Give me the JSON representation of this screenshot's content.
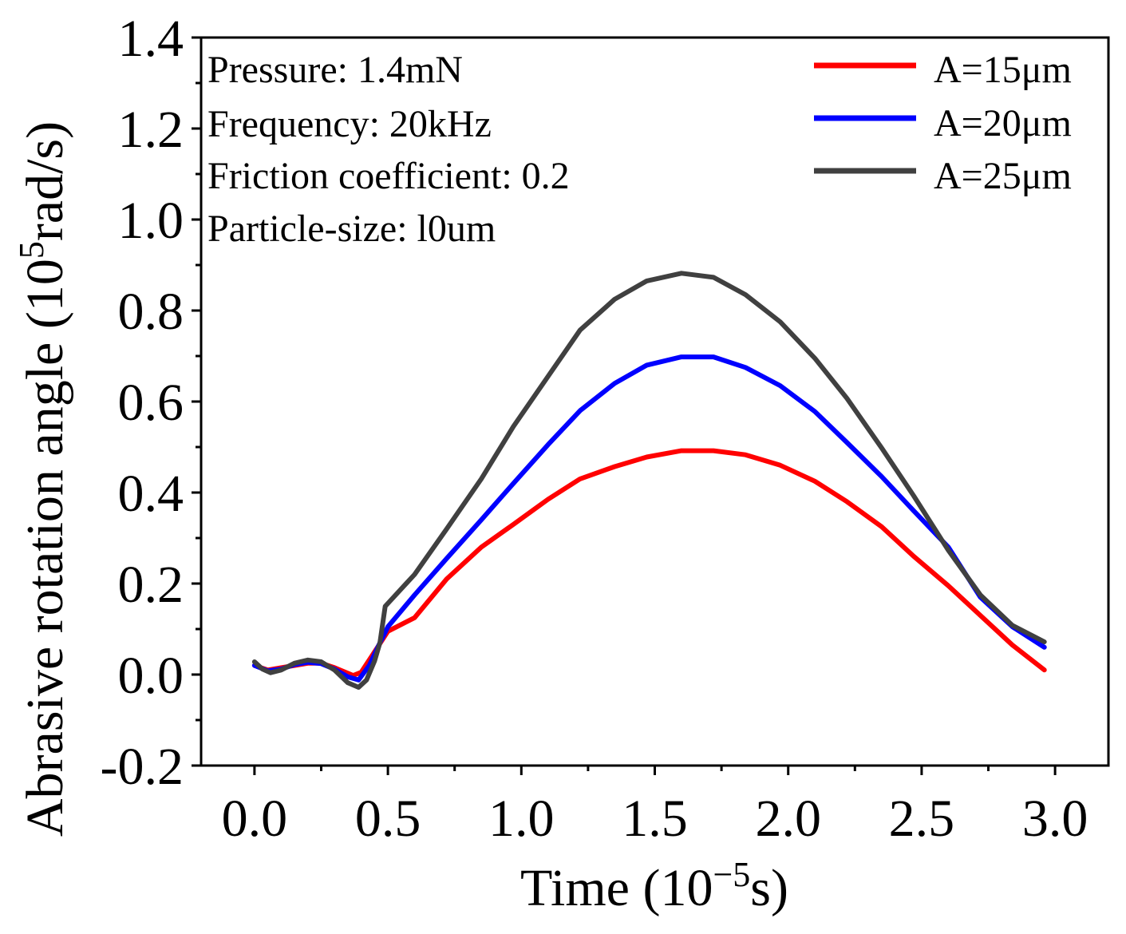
{
  "chart_data": {
    "type": "line",
    "title": "",
    "xlabel": "Time (10⁻⁵s)",
    "ylabel": "Abrasive rotation angle (10⁵rad/s)",
    "xlabel_parts": {
      "pre": "Time (10",
      "sup": "−5",
      "post": "s)"
    },
    "ylabel_parts": {
      "pre": "Abrasive rotation angle (10",
      "sup": "5",
      "post": "rad/s)"
    },
    "xlim": [
      -0.2,
      3.2
    ],
    "ylim": [
      -0.2,
      1.4
    ],
    "x_ticks": [
      0.0,
      0.5,
      1.0,
      1.5,
      2.0,
      2.5,
      3.0
    ],
    "x_tick_labels": [
      "0.0",
      "0.5",
      "1.0",
      "1.5",
      "2.0",
      "2.5",
      "3.0"
    ],
    "y_ticks": [
      -0.2,
      0.0,
      0.2,
      0.4,
      0.6,
      0.8,
      1.0,
      1.2,
      1.4
    ],
    "y_tick_labels": [
      "-0.2",
      "0.0",
      "0.2",
      "0.4",
      "0.6",
      "0.8",
      "1.0",
      "1.2",
      "1.4"
    ],
    "annotations": [
      "Pressure: 1.4mN",
      "Frequency: 20kHz",
      "Friction coefficient: 0.2",
      "Particle-size: l0um"
    ],
    "legend_position": "top-right",
    "grid": false,
    "series": [
      {
        "name": "A=15μm",
        "color": "#ff0000",
        "x": [
          0.0,
          0.05,
          0.1,
          0.2,
          0.25,
          0.3,
          0.37,
          0.4,
          0.45,
          0.5,
          0.6,
          0.72,
          0.85,
          0.97,
          1.1,
          1.22,
          1.35,
          1.47,
          1.6,
          1.72,
          1.84,
          1.97,
          2.1,
          2.22,
          2.35,
          2.47,
          2.6,
          2.72,
          2.84,
          2.96
        ],
        "y": [
          0.02,
          0.01,
          0.015,
          0.025,
          0.025,
          0.015,
          -0.002,
          0.005,
          0.05,
          0.095,
          0.125,
          0.21,
          0.28,
          0.33,
          0.385,
          0.43,
          0.457,
          0.478,
          0.492,
          0.492,
          0.483,
          0.46,
          0.425,
          0.38,
          0.325,
          0.26,
          0.195,
          0.13,
          0.065,
          0.01
        ]
      },
      {
        "name": "A=20μm",
        "color": "#0000ff",
        "x": [
          0.0,
          0.05,
          0.1,
          0.15,
          0.2,
          0.25,
          0.3,
          0.35,
          0.39,
          0.43,
          0.47,
          0.5,
          0.6,
          0.72,
          0.85,
          0.97,
          1.1,
          1.22,
          1.35,
          1.47,
          1.6,
          1.72,
          1.84,
          1.97,
          2.1,
          2.22,
          2.35,
          2.47,
          2.6,
          2.72,
          2.84,
          2.96
        ],
        "y": [
          0.02,
          0.008,
          0.012,
          0.022,
          0.027,
          0.024,
          0.012,
          -0.005,
          -0.012,
          0.02,
          0.07,
          0.105,
          0.175,
          0.255,
          0.34,
          0.42,
          0.505,
          0.58,
          0.64,
          0.68,
          0.698,
          0.698,
          0.675,
          0.635,
          0.578,
          0.51,
          0.435,
          0.36,
          0.28,
          0.17,
          0.105,
          0.06
        ]
      },
      {
        "name": "A=25μm",
        "color": "#404040",
        "x": [
          0.0,
          0.03,
          0.06,
          0.1,
          0.15,
          0.2,
          0.25,
          0.3,
          0.35,
          0.39,
          0.42,
          0.45,
          0.47,
          0.49,
          0.6,
          0.72,
          0.85,
          0.97,
          1.1,
          1.22,
          1.35,
          1.47,
          1.6,
          1.72,
          1.84,
          1.97,
          2.1,
          2.22,
          2.35,
          2.47,
          2.6,
          2.72,
          2.84,
          2.96
        ],
        "y": [
          0.028,
          0.012,
          0.004,
          0.01,
          0.025,
          0.032,
          0.028,
          0.01,
          -0.018,
          -0.028,
          -0.012,
          0.03,
          0.07,
          0.15,
          0.22,
          0.32,
          0.43,
          0.545,
          0.655,
          0.757,
          0.825,
          0.865,
          0.882,
          0.873,
          0.835,
          0.775,
          0.695,
          0.607,
          0.498,
          0.393,
          0.273,
          0.175,
          0.108,
          0.072
        ]
      }
    ]
  }
}
